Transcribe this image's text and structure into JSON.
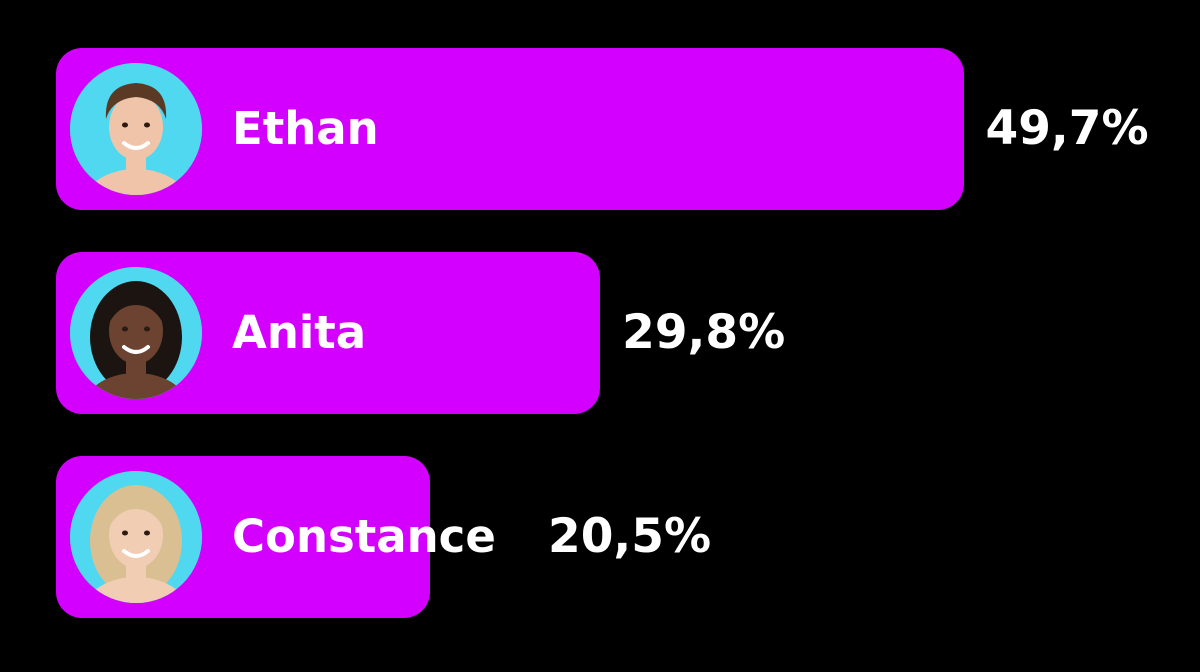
{
  "chart_data": {
    "type": "bar",
    "orientation": "horizontal",
    "categories": [
      "Ethan",
      "Anita",
      "Constance"
    ],
    "values": [
      49.7,
      29.8,
      20.5
    ],
    "value_labels": [
      "49,7%",
      "29,8%",
      "20,5%"
    ],
    "title": "",
    "xlabel": "",
    "ylabel": "",
    "grid": false,
    "legend": "none"
  },
  "colors": {
    "background": "#000000",
    "bar": "#d400ff",
    "text": "#ffffff",
    "avatar_background": "#4fd8f0"
  },
  "avatars": [
    {
      "icon": "ethan-avatar-icon",
      "hair": "#5a3a24",
      "skin": "#f0c4a8"
    },
    {
      "icon": "anita-avatar-icon",
      "hair": "#1c1410",
      "skin": "#6b4330"
    },
    {
      "icon": "constance-avatar-icon",
      "hair": "#d9bf92",
      "skin": "#f1cdb3"
    }
  ]
}
